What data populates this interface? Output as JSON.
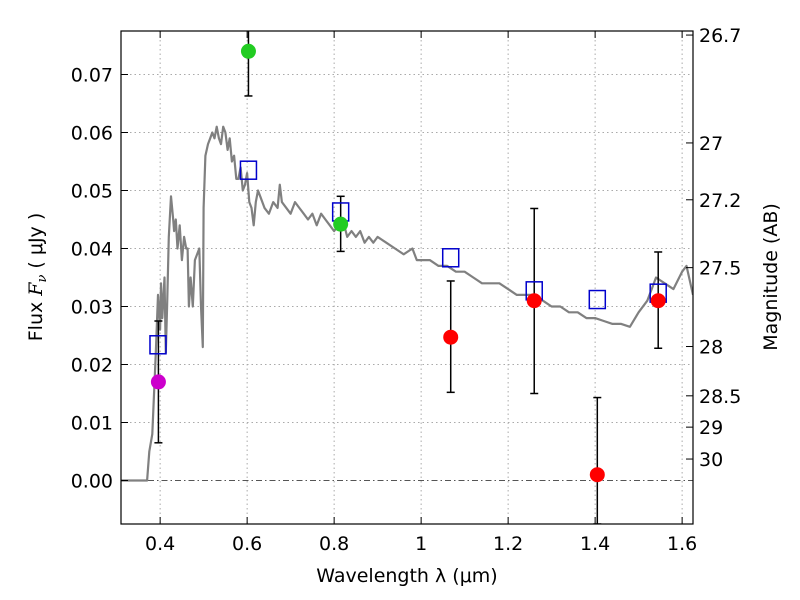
{
  "chart_data": {
    "type": "scatter",
    "xlabel": "Wavelength  λ (μm)",
    "ylabel": "Flux  F_ν  ( μJy )",
    "ylabel_parts": {
      "prefix": "Flux  ",
      "symbol": "F",
      "subscript": "ν",
      "unit": "  ( μJy )"
    },
    "y2label": "Magnitude (AB)",
    "xlim": [
      0.31,
      1.625
    ],
    "ylim": [
      -0.0075,
      0.0775
    ],
    "grid": true,
    "x_ticks": [
      0.4,
      0.6,
      0.8,
      1.0,
      1.2,
      1.4,
      1.6
    ],
    "x_tick_labels": [
      "0.4",
      "0.6",
      "0.8",
      "1",
      "1.2",
      "1.4",
      "1.6"
    ],
    "y_ticks": [
      0.0,
      0.01,
      0.02,
      0.03,
      0.04,
      0.05,
      0.06,
      0.07
    ],
    "y_tick_labels": [
      "0.00",
      "0.01",
      "0.02",
      "0.03",
      "0.04",
      "0.05",
      "0.06",
      "0.07"
    ],
    "y2_ticks": [
      {
        "label": "26.7",
        "flux": 0.0768
      },
      {
        "label": "27",
        "flux": 0.0582
      },
      {
        "label": "27.2",
        "flux": 0.0484
      },
      {
        "label": "27.5",
        "flux": 0.0367
      },
      {
        "label": "28",
        "flux": 0.0231
      },
      {
        "label": "28.5",
        "flux": 0.0146
      },
      {
        "label": "29",
        "flux": 0.0092
      },
      {
        "label": "30",
        "flux": 0.0037
      }
    ],
    "colors": {
      "model": "#808080",
      "model_photometry": "#0000cc",
      "error_bar": "#000000",
      "red": "#ff0000",
      "green": "#22cc22",
      "magenta": "#cc00cc",
      "grid": "#aaaaaa",
      "zero_line": "#555555"
    },
    "model_sed": {
      "x": [
        0.31,
        0.37,
        0.375,
        0.382,
        0.39,
        0.395,
        0.4,
        0.402,
        0.405,
        0.41,
        0.413,
        0.416,
        0.42,
        0.425,
        0.43,
        0.432,
        0.436,
        0.44,
        0.445,
        0.45,
        0.455,
        0.46,
        0.463,
        0.466,
        0.47,
        0.475,
        0.48,
        0.49,
        0.494,
        0.498,
        0.5,
        0.504,
        0.51,
        0.515,
        0.52,
        0.525,
        0.53,
        0.535,
        0.54,
        0.545,
        0.55,
        0.555,
        0.56,
        0.565,
        0.57,
        0.575,
        0.58,
        0.585,
        0.59,
        0.595,
        0.6,
        0.605,
        0.61,
        0.615,
        0.62,
        0.625,
        0.63,
        0.64,
        0.65,
        0.66,
        0.67,
        0.675,
        0.68,
        0.69,
        0.7,
        0.71,
        0.72,
        0.73,
        0.74,
        0.75,
        0.76,
        0.77,
        0.78,
        0.79,
        0.8,
        0.81,
        0.82,
        0.83,
        0.84,
        0.85,
        0.86,
        0.87,
        0.88,
        0.89,
        0.9,
        0.92,
        0.94,
        0.96,
        0.98,
        0.99,
        1.0,
        1.02,
        1.04,
        1.06,
        1.08,
        1.1,
        1.12,
        1.14,
        1.16,
        1.18,
        1.2,
        1.22,
        1.24,
        1.26,
        1.28,
        1.3,
        1.32,
        1.34,
        1.36,
        1.38,
        1.4,
        1.42,
        1.44,
        1.46,
        1.48,
        1.5,
        1.52,
        1.53,
        1.54,
        1.56,
        1.58,
        1.6,
        1.61,
        1.625
      ],
      "y": [
        0.0,
        0.0,
        0.005,
        0.008,
        0.022,
        0.032,
        0.026,
        0.034,
        0.028,
        0.035,
        0.022,
        0.03,
        0.042,
        0.049,
        0.045,
        0.043,
        0.045,
        0.04,
        0.044,
        0.038,
        0.042,
        0.04,
        0.04,
        0.03,
        0.035,
        0.03,
        0.038,
        0.04,
        0.03,
        0.023,
        0.047,
        0.056,
        0.058,
        0.059,
        0.06,
        0.059,
        0.061,
        0.059,
        0.058,
        0.061,
        0.06,
        0.057,
        0.059,
        0.055,
        0.056,
        0.052,
        0.052,
        0.054,
        0.05,
        0.051,
        0.053,
        0.048,
        0.047,
        0.044,
        0.048,
        0.05,
        0.049,
        0.047,
        0.046,
        0.048,
        0.047,
        0.051,
        0.048,
        0.047,
        0.046,
        0.048,
        0.047,
        0.046,
        0.045,
        0.046,
        0.044,
        0.046,
        0.045,
        0.044,
        0.043,
        0.044,
        0.045,
        0.042,
        0.043,
        0.042,
        0.043,
        0.041,
        0.042,
        0.041,
        0.042,
        0.041,
        0.04,
        0.039,
        0.04,
        0.038,
        0.038,
        0.038,
        0.037,
        0.037,
        0.036,
        0.036,
        0.035,
        0.034,
        0.034,
        0.034,
        0.033,
        0.032,
        0.032,
        0.032,
        0.031,
        0.03,
        0.03,
        0.029,
        0.029,
        0.028,
        0.028,
        0.0275,
        0.027,
        0.027,
        0.0265,
        0.029,
        0.031,
        0.033,
        0.035,
        0.034,
        0.033,
        0.036,
        0.037,
        0.032
      ]
    },
    "model_photometry": [
      {
        "x": 0.395,
        "y": 0.0234
      },
      {
        "x": 0.603,
        "y": 0.0535
      },
      {
        "x": 0.815,
        "y": 0.0463
      },
      {
        "x": 1.068,
        "y": 0.0384
      },
      {
        "x": 1.26,
        "y": 0.0327
      },
      {
        "x": 1.405,
        "y": 0.0312
      },
      {
        "x": 1.545,
        "y": 0.0323
      }
    ],
    "observed_photometry": [
      {
        "x": 0.396,
        "y": 0.017,
        "err_low": 0.0065,
        "err_high": 0.0275,
        "color": "#cc00cc"
      },
      {
        "x": 0.603,
        "y": 0.074,
        "err_low": 0.0663,
        "err_high": 0.082,
        "color": "#22cc22"
      },
      {
        "x": 0.815,
        "y": 0.0442,
        "err_low": 0.0395,
        "err_high": 0.049,
        "color": "#22cc22"
      },
      {
        "x": 1.068,
        "y": 0.0247,
        "err_low": 0.0152,
        "err_high": 0.0344,
        "color": "#ff0000"
      },
      {
        "x": 1.26,
        "y": 0.031,
        "err_low": 0.015,
        "err_high": 0.0469,
        "color": "#ff0000"
      },
      {
        "x": 1.405,
        "y": 0.001,
        "err_low": -0.0075,
        "err_high": 0.0143,
        "color": "#ff0000"
      },
      {
        "x": 1.545,
        "y": 0.031,
        "err_low": 0.0228,
        "err_high": 0.0394,
        "color": "#ff0000"
      }
    ]
  }
}
